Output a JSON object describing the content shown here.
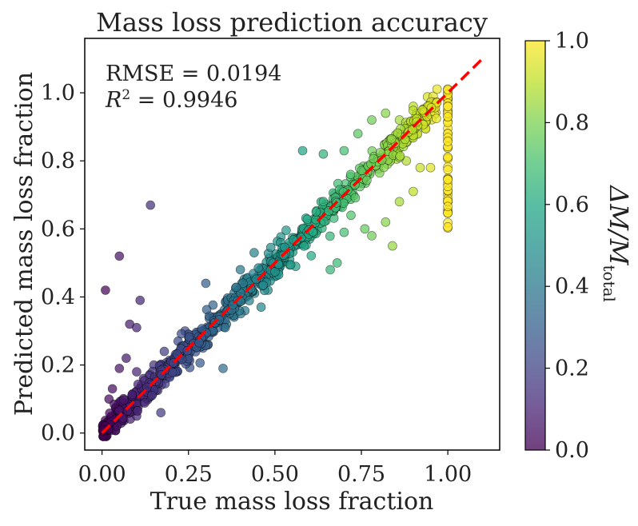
{
  "chart_data": {
    "type": "scatter",
    "title": "Mass loss prediction accuracy",
    "xlabel": "True mass loss fraction",
    "ylabel": "Predicted mass loss fraction",
    "xlim": [
      -0.05,
      1.15
    ],
    "ylim": [
      -0.05,
      1.16
    ],
    "xticks": [
      0.0,
      0.25,
      0.5,
      0.75,
      1.0
    ],
    "xtick_labels": [
      "0.00",
      "0.25",
      "0.50",
      "0.75",
      "1.00"
    ],
    "yticks": [
      0.0,
      0.2,
      0.4,
      0.6,
      0.8,
      1.0
    ],
    "ytick_labels": [
      "0.0",
      "0.2",
      "0.4",
      "0.6",
      "0.8",
      "1.0"
    ],
    "grid": false,
    "annotation": {
      "rmse_label": "RMSE = 0.0194",
      "r2_symbol": "R",
      "r2_exponent": "2",
      "r2_value": " = 0.9946"
    },
    "reference_line": {
      "x": [
        0.0,
        1.1
      ],
      "y": [
        0.0,
        1.1
      ],
      "color": "#ff0000",
      "style": "dashed"
    },
    "colorbar": {
      "label_main": "ΔM/M",
      "label_sub": "total",
      "range": [
        0.0,
        1.0
      ],
      "ticks": [
        0.0,
        0.2,
        0.4,
        0.6,
        0.8,
        1.0
      ],
      "tick_labels": [
        "0.0",
        "0.2",
        "0.4",
        "0.6",
        "0.8",
        "1.0"
      ],
      "colormap": "viridis"
    },
    "points": [
      [
        0.14,
        0.67
      ],
      [
        0.05,
        0.52
      ],
      [
        0.01,
        0.42
      ],
      [
        0.11,
        0.39
      ],
      [
        0.08,
        0.32
      ],
      [
        0.1,
        0.31
      ],
      [
        0.17,
        0.06
      ],
      [
        0.35,
        0.19
      ],
      [
        0.58,
        0.83
      ],
      [
        0.52,
        0.5
      ],
      [
        0.66,
        0.48
      ],
      [
        0.68,
        0.5
      ],
      [
        0.7,
        0.59
      ],
      [
        0.72,
        0.64
      ],
      [
        0.76,
        0.6
      ],
      [
        0.78,
        0.58
      ],
      [
        0.84,
        0.55
      ],
      [
        0.82,
        0.62
      ],
      [
        0.86,
        0.68
      ],
      [
        0.9,
        0.71
      ],
      [
        0.92,
        0.78
      ],
      [
        0.95,
        0.78
      ],
      [
        0.88,
        0.8
      ],
      [
        0.64,
        0.82
      ],
      [
        0.7,
        0.83
      ],
      [
        0.74,
        0.88
      ],
      [
        0.78,
        0.92
      ],
      [
        0.82,
        0.94
      ],
      [
        0.86,
        0.92
      ],
      [
        0.9,
        0.96
      ],
      [
        0.4,
        0.48
      ],
      [
        0.44,
        0.53
      ],
      [
        0.46,
        0.37
      ],
      [
        0.48,
        0.42
      ],
      [
        0.5,
        0.46
      ],
      [
        0.56,
        0.49
      ],
      [
        0.6,
        0.57
      ],
      [
        0.3,
        0.44
      ],
      [
        0.32,
        0.34
      ],
      [
        0.36,
        0.32
      ],
      [
        0.26,
        0.25
      ],
      [
        0.22,
        0.27
      ],
      [
        0.2,
        0.18
      ],
      [
        0.24,
        0.3
      ],
      [
        0.28,
        0.27
      ],
      [
        0.15,
        0.2
      ],
      [
        0.18,
        0.24
      ],
      [
        0.12,
        0.16
      ],
      [
        0.1,
        0.18
      ],
      [
        0.07,
        0.22
      ],
      [
        0.05,
        0.19
      ],
      [
        0.03,
        0.13
      ],
      [
        0.02,
        0.1
      ],
      [
        0.06,
        0.09
      ],
      [
        0.04,
        0.06
      ],
      [
        0.02,
        0.03
      ],
      [
        0.09,
        0.1
      ]
    ]
  }
}
